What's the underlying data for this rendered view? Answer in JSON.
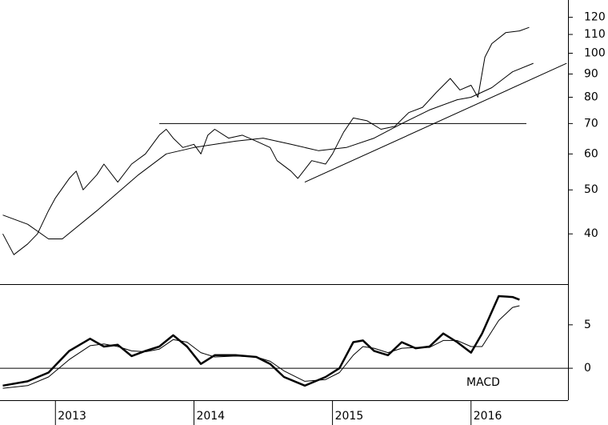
{
  "chart_data": [
    {
      "type": "line",
      "log_y": true,
      "grid": false,
      "xlim": [
        2012.6,
        2016.7
      ],
      "ylim": [
        31,
        131
      ],
      "yticks": [
        40,
        50,
        60,
        70,
        80,
        90,
        100,
        110,
        120
      ],
      "series": [
        {
          "color": "#000000",
          "width": 1,
          "x": [
            2012.62,
            2012.7,
            2012.8,
            2012.87,
            2012.95,
            2013.0,
            2013.1,
            2013.15,
            2013.2,
            2013.3,
            2013.35,
            2013.45,
            2013.55,
            2013.65,
            2013.75,
            2013.8,
            2013.85,
            2013.92,
            2014.0,
            2014.05,
            2014.1,
            2014.15,
            2014.25,
            2014.35,
            2014.45,
            2014.55,
            2014.6,
            2014.7,
            2014.75,
            2014.85,
            2014.95,
            2015.0,
            2015.08,
            2015.15,
            2015.25,
            2015.35,
            2015.45,
            2015.55,
            2015.65,
            2015.75,
            2015.85,
            2015.92,
            2016.0,
            2016.05,
            2016.1,
            2016.15,
            2016.25,
            2016.35,
            2016.42
          ],
          "values": [
            40,
            36,
            38,
            40,
            45,
            48,
            53,
            55,
            50,
            54,
            57,
            52,
            57,
            60,
            66,
            68,
            65,
            62,
            63,
            60,
            66,
            68,
            65,
            66,
            64,
            62,
            58,
            55,
            53,
            58,
            57,
            60,
            67,
            72,
            71,
            68,
            69,
            74,
            76,
            82,
            88,
            83,
            85,
            80,
            98,
            105,
            111,
            112,
            114
          ]
        },
        {
          "color": "#000000",
          "width": 1,
          "x": [
            2012.62,
            2012.8,
            2012.95,
            2013.05,
            2013.3,
            2013.6,
            2013.8,
            2014.0,
            2014.3,
            2014.5,
            2014.7,
            2014.9,
            2015.1,
            2015.3,
            2015.5,
            2015.7,
            2015.9,
            2016.0,
            2016.15,
            2016.3,
            2016.45
          ],
          "values": [
            44,
            42,
            39,
            39,
            45,
            54,
            60,
            62,
            64,
            65,
            63,
            61,
            62,
            65,
            70,
            75,
            79,
            80,
            84,
            91,
            95
          ]
        },
        {
          "color": "#000000",
          "width": 1,
          "x": [
            2013.75,
            2016.4
          ],
          "values": [
            70,
            70
          ]
        },
        {
          "color": "#000000",
          "width": 1,
          "x": [
            2014.8,
            2016.69
          ],
          "values": [
            52,
            95
          ]
        }
      ]
    },
    {
      "type": "line",
      "log_y": false,
      "grid": false,
      "xlim": [
        2012.6,
        2016.7
      ],
      "ylim": [
        -3.4,
        9.5
      ],
      "yticks": [
        0,
        5
      ],
      "xticks": [
        2013,
        2014,
        2015,
        2016
      ],
      "reference_line": 0,
      "annotation": "MACD",
      "series": [
        {
          "color": "#000000",
          "width": 2.5,
          "x": [
            2012.62,
            2012.8,
            2012.95,
            2013.1,
            2013.25,
            2013.35,
            2013.45,
            2013.55,
            2013.65,
            2013.75,
            2013.85,
            2013.95,
            2014.05,
            2014.15,
            2014.3,
            2014.45,
            2014.55,
            2014.65,
            2014.8,
            2014.95,
            2015.05,
            2015.15,
            2015.22,
            2015.3,
            2015.4,
            2015.5,
            2015.6,
            2015.7,
            2015.8,
            2015.9,
            2016.0,
            2016.08,
            2016.2,
            2016.3,
            2016.35
          ],
          "values": [
            -2,
            -1.5,
            -0.5,
            2,
            3.4,
            2.5,
            2.7,
            1.4,
            2,
            2.5,
            3.8,
            2.5,
            0.5,
            1.5,
            1.5,
            1.3,
            0.5,
            -1,
            -2,
            -1,
            0,
            3,
            3.2,
            2,
            1.5,
            3,
            2.3,
            2.5,
            4,
            3,
            1.8,
            4,
            8.3,
            8.2,
            7.9
          ]
        },
        {
          "color": "#000000",
          "width": 1,
          "x": [
            2012.62,
            2012.8,
            2012.95,
            2013.1,
            2013.25,
            2013.35,
            2013.45,
            2013.55,
            2013.65,
            2013.75,
            2013.85,
            2013.95,
            2014.05,
            2014.15,
            2014.3,
            2014.45,
            2014.55,
            2014.65,
            2014.8,
            2014.95,
            2015.05,
            2015.15,
            2015.22,
            2015.3,
            2015.4,
            2015.5,
            2015.6,
            2015.7,
            2015.8,
            2015.9,
            2016.0,
            2016.08,
            2016.2,
            2016.3,
            2016.35
          ],
          "values": [
            -2.3,
            -2,
            -1,
            1,
            2.6,
            2.8,
            2.5,
            2,
            1.9,
            2.2,
            3.3,
            3,
            1.8,
            1.3,
            1.4,
            1.3,
            0.8,
            -0.3,
            -1.5,
            -1.3,
            -0.5,
            1.5,
            2.5,
            2.3,
            1.8,
            2.3,
            2.4,
            2.4,
            3.2,
            3.2,
            2.5,
            2.5,
            5.5,
            7,
            7.2
          ]
        }
      ]
    }
  ]
}
